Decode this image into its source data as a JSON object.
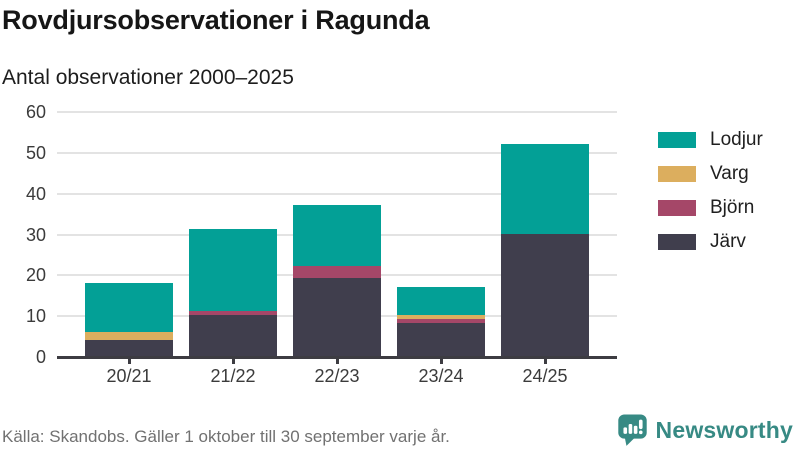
{
  "title": "Rovdjursobservationer i Ragunda",
  "subtitle": "Antal observationer 2000–2025",
  "footer": {
    "source": "Källa: Skandobs. Gäller 1 oktober till 30 september varje år."
  },
  "branding": {
    "name": "Newsworthy",
    "icon": "bar-chart-speech-bubble-icon",
    "color": "#378a84"
  },
  "chart_data": {
    "type": "bar",
    "stacked": true,
    "title": "Rovdjursobservationer i Ragunda",
    "subtitle": "Antal observationer 2000–2025",
    "xlabel": "",
    "ylabel": "",
    "categories": [
      "20/21",
      "21/22",
      "22/23",
      "23/24",
      "24/25"
    ],
    "series": [
      {
        "name": "Järv",
        "color": "#403e4d",
        "values": [
          4,
          10,
          19,
          8,
          30
        ]
      },
      {
        "name": "Björn",
        "color": "#a54768",
        "values": [
          0,
          1,
          3,
          1,
          0
        ]
      },
      {
        "name": "Varg",
        "color": "#dcae5e",
        "values": [
          2,
          0,
          0,
          1,
          0
        ]
      },
      {
        "name": "Lodjur",
        "color": "#03a096",
        "values": [
          12,
          20,
          15,
          7,
          22
        ]
      }
    ],
    "totals": [
      18,
      31,
      37,
      17,
      52
    ],
    "stack_order_bottom_to_top": [
      "Järv",
      "Björn",
      "Varg",
      "Lodjur"
    ],
    "legend": [
      "Lodjur",
      "Varg",
      "Björn",
      "Järv"
    ],
    "legend_position": "right",
    "ylim": [
      0,
      60
    ],
    "yticks": [
      0,
      10,
      20,
      30,
      40,
      50,
      60
    ],
    "grid": "horizontal",
    "grid_color": "#e3e3e3",
    "axis_color": "#3d3c42"
  }
}
